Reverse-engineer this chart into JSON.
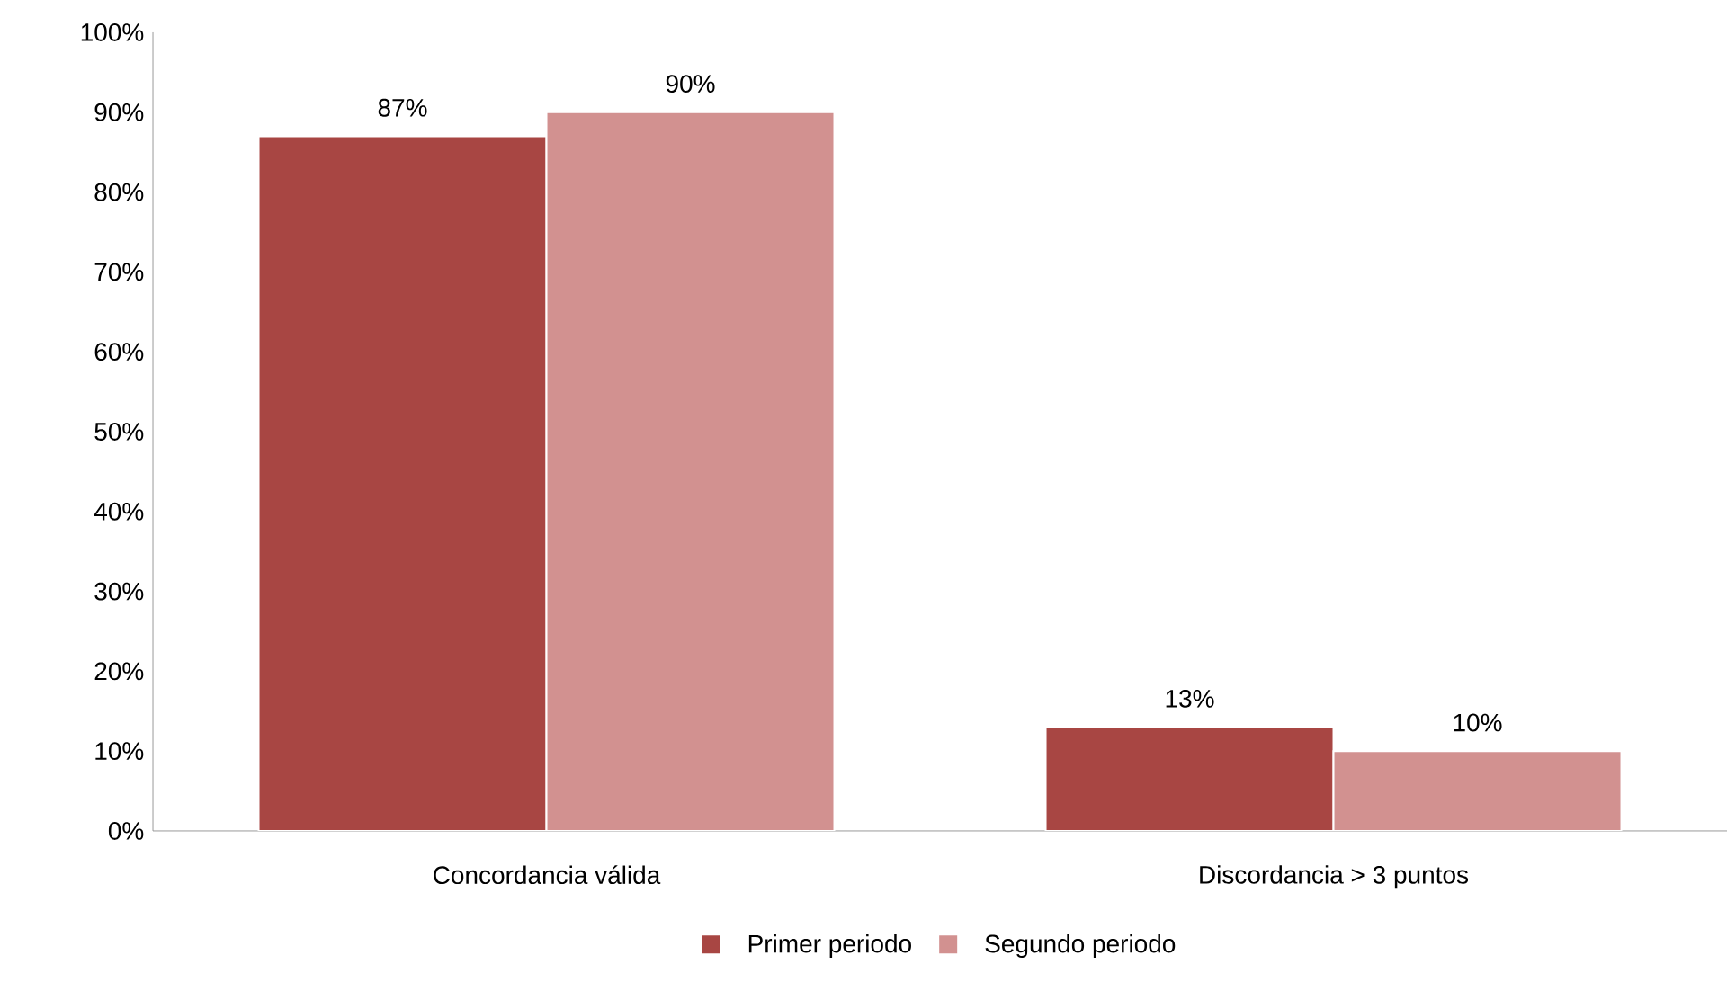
{
  "chart_data": {
    "type": "bar",
    "categories": [
      "Concordancia válida",
      "Discordancia > 3 puntos"
    ],
    "series": [
      {
        "name": "Primer periodo",
        "color": "#a84643",
        "values": [
          87,
          13
        ],
        "value_labels": [
          "87%",
          "13%"
        ]
      },
      {
        "name": "Segundo periodo",
        "color": "#d29190",
        "values": [
          90,
          10
        ],
        "value_labels": [
          "90%",
          "10%"
        ]
      }
    ],
    "ylim": [
      0,
      100
    ],
    "yticks": [
      {
        "value": 0,
        "label": "0%"
      },
      {
        "value": 10,
        "label": "10%"
      },
      {
        "value": 20,
        "label": "20%"
      },
      {
        "value": 30,
        "label": "30%"
      },
      {
        "value": 40,
        "label": "40%"
      },
      {
        "value": 50,
        "label": "50%"
      },
      {
        "value": 60,
        "label": "60%"
      },
      {
        "value": 70,
        "label": "70%"
      },
      {
        "value": 80,
        "label": "80%"
      },
      {
        "value": 90,
        "label": "90%"
      },
      {
        "value": 100,
        "label": "100%"
      }
    ],
    "grid": false,
    "legend": "bottom"
  }
}
